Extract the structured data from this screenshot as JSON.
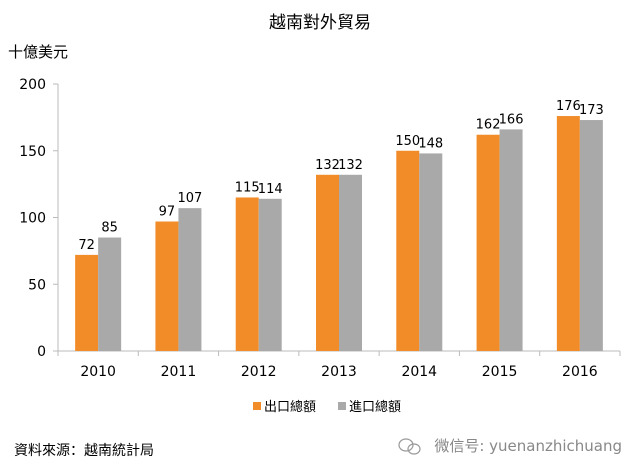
{
  "chart_data": {
    "type": "bar",
    "title": "越南對外貿易",
    "ylabel": "十億美元",
    "xlabel": "",
    "categories": [
      "2010",
      "2011",
      "2012",
      "2013",
      "2014",
      "2015",
      "2016"
    ],
    "series": [
      {
        "name": "出口總額",
        "values": [
          72,
          97,
          115,
          132,
          150,
          162,
          176
        ],
        "color": "#f28c28"
      },
      {
        "name": "進口總額",
        "values": [
          85,
          107,
          114,
          132,
          148,
          166,
          173
        ],
        "color": "#a9a9a9"
      }
    ],
    "ylim": [
      0,
      200
    ],
    "yticks": [
      0,
      50,
      100,
      150,
      200
    ],
    "grid": false,
    "legend": "bottom",
    "data_labels": true
  },
  "footer": {
    "source": "資料來源：越南統計局",
    "wechat": "微信号: yuenanzhichuang"
  }
}
